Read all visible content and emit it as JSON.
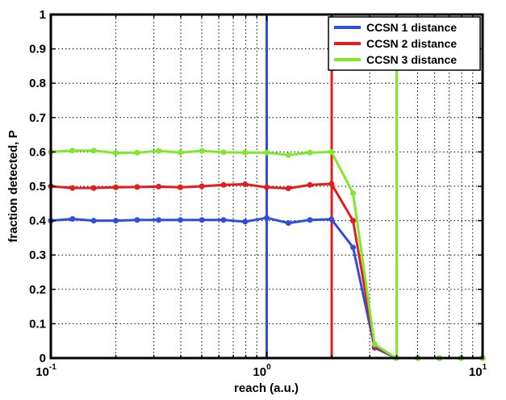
{
  "chart_data": {
    "type": "line",
    "title": "",
    "xlabel": "reach (a.u.)",
    "ylabel": "fraction detected, P",
    "xscale": "log",
    "xlim": [
      0.1,
      10
    ],
    "ylim": [
      0,
      1
    ],
    "grid": true,
    "legend_position": "top-right",
    "x_ticks": [
      {
        "base": "10",
        "exp": "-1"
      },
      {
        "base": "10",
        "exp": "0"
      },
      {
        "base": "10",
        "exp": "1"
      }
    ],
    "y_ticks": [
      "0",
      "0.1",
      "0.2",
      "0.3",
      "0.4",
      "0.5",
      "0.6",
      "0.7",
      "0.8",
      "0.9",
      "1"
    ],
    "x": [
      0.1,
      0.126,
      0.158,
      0.2,
      0.251,
      0.316,
      0.398,
      0.501,
      0.631,
      0.794,
      1.0,
      1.259,
      1.585,
      1.995,
      2.512,
      3.162,
      3.981,
      5.012,
      6.31,
      7.943,
      10.0
    ],
    "series": [
      {
        "name": "CCSN 1 distance",
        "color": "#2d4fe0",
        "values": [
          0.4,
          0.405,
          0.4,
          0.4,
          0.402,
          0.402,
          0.402,
          0.402,
          0.402,
          0.397,
          0.408,
          0.393,
          0.402,
          0.404,
          0.322,
          0.03,
          0.0,
          0.0,
          0.0,
          0.0,
          0.0
        ],
        "vline_x": 1.0
      },
      {
        "name": "CCSN 2 distance",
        "color": "#e61c1c",
        "values": [
          0.5,
          0.495,
          0.495,
          0.497,
          0.498,
          0.499,
          0.497,
          0.5,
          0.504,
          0.506,
          0.497,
          0.494,
          0.504,
          0.507,
          0.4,
          0.035,
          0.0,
          0.0,
          0.0,
          0.0,
          0.0
        ],
        "vline_x": 2.0
      },
      {
        "name": "CCSN 3 distance",
        "color": "#7fe82a",
        "values": [
          0.6,
          0.604,
          0.604,
          0.597,
          0.598,
          0.603,
          0.598,
          0.603,
          0.599,
          0.598,
          0.598,
          0.591,
          0.598,
          0.6,
          0.48,
          0.04,
          0.0,
          0.0,
          0.0,
          0.0,
          0.0
        ],
        "vline_x": 4.0
      }
    ]
  }
}
